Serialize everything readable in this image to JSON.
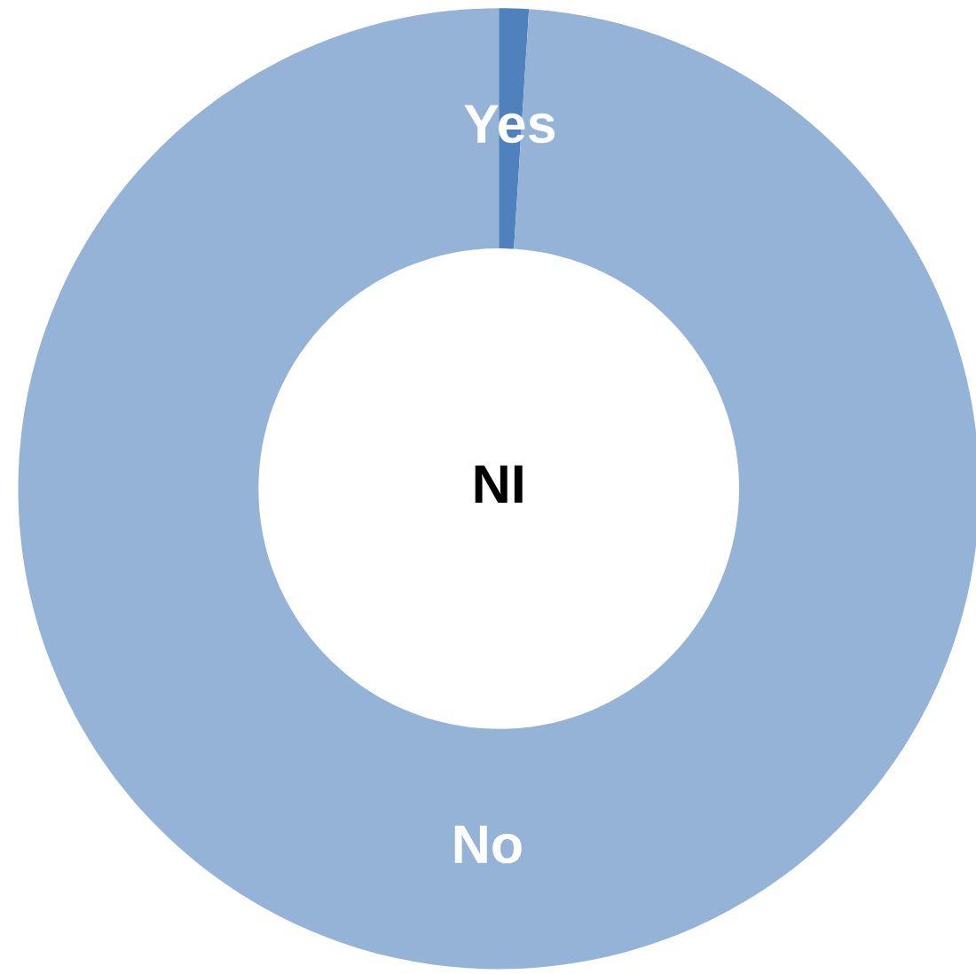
{
  "chart_data": {
    "type": "donut",
    "title": "NI",
    "categories": [
      "Yes",
      "No"
    ],
    "values": [
      1,
      99
    ],
    "colors": [
      "#4f81bd",
      "#95b3d7"
    ],
    "legend": false
  }
}
